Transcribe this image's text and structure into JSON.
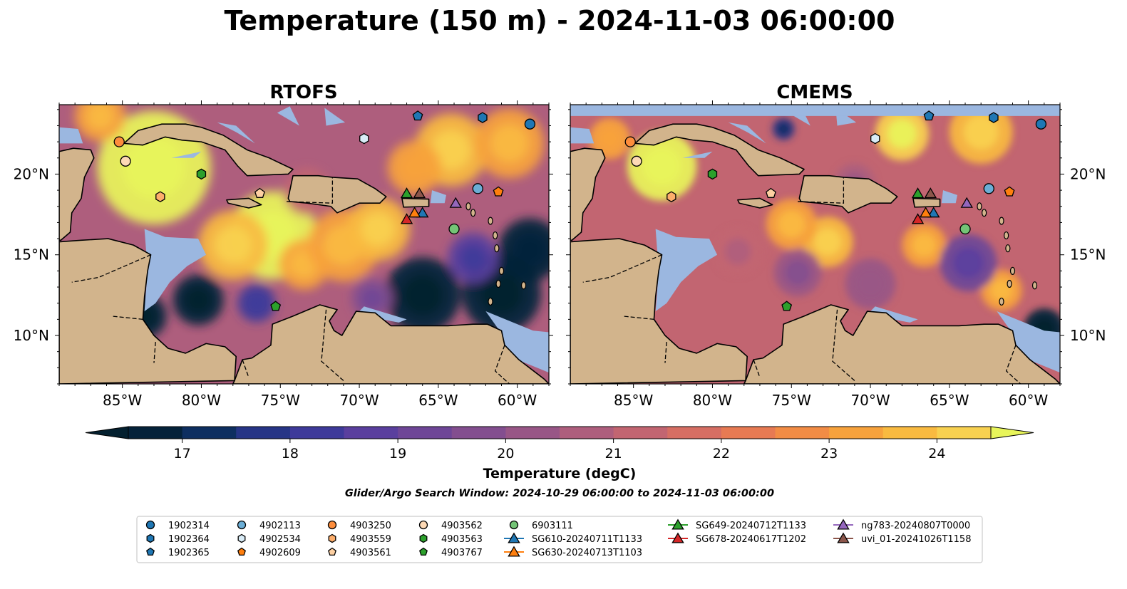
{
  "figure": {
    "title": "Temperature (150 m) - 2024-11-03 06:00:00",
    "search_window": "Glider/Argo Search Window: 2024-10-29 06:00:00 to 2024-11-03 06:00:00"
  },
  "panels": [
    {
      "title": "RTOFS",
      "model": "rtofs"
    },
    {
      "title": "CMEMS",
      "model": "cmems"
    }
  ],
  "axes": {
    "lon_range": [
      -89,
      -58
    ],
    "lat_range": [
      7,
      24.3
    ],
    "x_ticks": [
      {
        "value": -85,
        "label": "85°W"
      },
      {
        "value": -80,
        "label": "80°W"
      },
      {
        "value": -75,
        "label": "75°W"
      },
      {
        "value": -70,
        "label": "70°W"
      },
      {
        "value": -65,
        "label": "65°W"
      },
      {
        "value": -60,
        "label": "60°W"
      }
    ],
    "y_ticks": [
      {
        "value": 10,
        "label": "10°N"
      },
      {
        "value": 15,
        "label": "15°N"
      },
      {
        "value": 20,
        "label": "20°N"
      }
    ]
  },
  "colorbar": {
    "label": "Temperature (degC)",
    "min": 16.5,
    "max": 24.5,
    "ticks": [
      "17",
      "18",
      "19",
      "20",
      "21",
      "22",
      "23",
      "24"
    ],
    "tick_values": [
      17,
      18,
      19,
      20,
      21,
      22,
      23,
      24
    ],
    "colors": [
      "#05223a",
      "#0e2f60",
      "#263586",
      "#3e3a9a",
      "#5a3f9e",
      "#6e4697",
      "#834e8f",
      "#985686",
      "#ae5e7d",
      "#c26571",
      "#d66e63",
      "#e77a53",
      "#f28c45",
      "#f7a23c",
      "#f9ba40",
      "#f8d150"
    ],
    "under_color": "#04202f",
    "over_color": "#e8f55a"
  },
  "legend": {
    "columns": [
      [
        {
          "label": "1902314",
          "marker": "circle",
          "color": "#1f77b4"
        },
        {
          "label": "1902364",
          "marker": "hexagon",
          "color": "#1f77b4"
        },
        {
          "label": "1902365",
          "marker": "pentagon",
          "color": "#1f77b4"
        }
      ],
      [
        {
          "label": "4902113",
          "marker": "circle",
          "color": "#6baed6"
        },
        {
          "label": "4902534",
          "marker": "hexagon",
          "color": "#d9ecf7"
        },
        {
          "label": "4902609",
          "marker": "pentagon",
          "color": "#ff7f0e"
        }
      ],
      [
        {
          "label": "4903250",
          "marker": "circle",
          "color": "#fd8d3c"
        },
        {
          "label": "4903559",
          "marker": "hexagon",
          "color": "#fdae6b"
        },
        {
          "label": "4903561",
          "marker": "pentagon",
          "color": "#fdd0a2"
        }
      ],
      [
        {
          "label": "4903562",
          "marker": "circle",
          "color": "#fdd9b5"
        },
        {
          "label": "4903563",
          "marker": "hexagon",
          "color": "#2ca02c"
        },
        {
          "label": "4903767",
          "marker": "pentagon",
          "color": "#2ca02c"
        }
      ],
      [
        {
          "label": "6903111",
          "marker": "circle",
          "color": "#74c476"
        },
        {
          "label": "SG610-20240711T1133",
          "marker": "triangle",
          "color": "#1f77b4",
          "line": true
        },
        {
          "label": "SG630-20240713T1103",
          "marker": "triangle",
          "color": "#ff7f0e",
          "line": true
        }
      ],
      [
        {
          "label": "SG649-20240712T1133",
          "marker": "triangle",
          "color": "#2ca02c",
          "line": true
        },
        {
          "label": "SG678-20240617T1202",
          "marker": "triangle",
          "color": "#d62728",
          "line": true
        }
      ],
      [
        {
          "label": "ng783-20240807T0000",
          "marker": "triangle",
          "color": "#9467bd",
          "line": true
        },
        {
          "label": "uvi_01-20241026T1158",
          "marker": "triangle",
          "color": "#8c564b",
          "line": true
        }
      ]
    ]
  },
  "observations": [
    {
      "label": "1902314",
      "lon": -59.2,
      "lat": 23.1
    },
    {
      "label": "1902364",
      "lon": -62.2,
      "lat": 23.5
    },
    {
      "label": "1902365",
      "lon": -66.3,
      "lat": 23.6
    },
    {
      "label": "4902113",
      "lon": -62.5,
      "lat": 19.1
    },
    {
      "label": "4902534",
      "lon": -69.7,
      "lat": 22.2
    },
    {
      "label": "4902609",
      "lon": -61.2,
      "lat": 18.9
    },
    {
      "label": "4903250",
      "lon": -85.2,
      "lat": 22.0
    },
    {
      "label": "4903559",
      "lon": -82.6,
      "lat": 18.6
    },
    {
      "label": "4903561",
      "lon": -76.3,
      "lat": 18.8
    },
    {
      "label": "4903562",
      "lon": -84.8,
      "lat": 20.8
    },
    {
      "label": "4903563",
      "lon": -80.0,
      "lat": 20.0
    },
    {
      "label": "4903767",
      "lon": -75.3,
      "lat": 11.8
    },
    {
      "label": "6903111",
      "lon": -64.0,
      "lat": 16.6
    },
    {
      "label": "SG610-20240711T1133",
      "lon": -66.0,
      "lat": 17.6
    },
    {
      "label": "SG630-20240713T1103",
      "lon": -66.5,
      "lat": 17.6
    },
    {
      "label": "SG649-20240712T1133",
      "lon": -67.0,
      "lat": 18.8
    },
    {
      "label": "SG678-20240617T1202",
      "lon": -67.0,
      "lat": 17.2
    },
    {
      "label": "ng783-20240807T0000",
      "lon": -63.9,
      "lat": 18.2
    },
    {
      "label": "uvi_01-20241026T1158",
      "lon": -66.2,
      "lat": 18.8
    }
  ]
}
